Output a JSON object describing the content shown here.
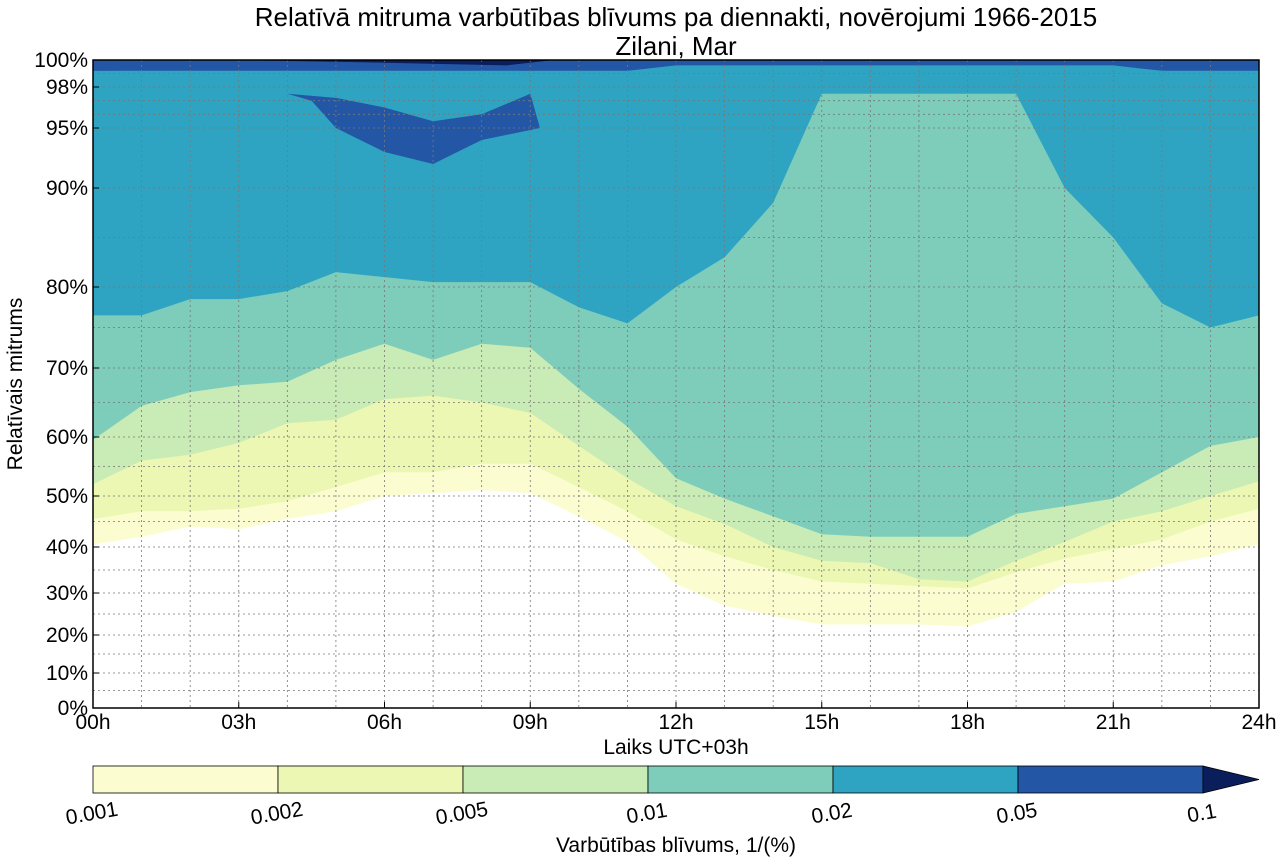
{
  "chart_data": {
    "type": "contour",
    "title": "Relatīvā mitruma varbūtības blīvums pa diennakti, novērojumi 1966-2015",
    "subtitle": "Zilani, Mar",
    "xlabel": "Laiks UTC+03h",
    "ylabel": "Relatīvais mitrums",
    "x_unit": "hour",
    "xlim": [
      0,
      24
    ],
    "ylim": [
      0,
      100
    ],
    "y_scale": "nonlinear (expanded near 100%)",
    "x_ticks": [
      {
        "value": 0,
        "label": "00h"
      },
      {
        "value": 3,
        "label": "03h"
      },
      {
        "value": 6,
        "label": "06h"
      },
      {
        "value": 9,
        "label": "09h"
      },
      {
        "value": 12,
        "label": "12h"
      },
      {
        "value": 15,
        "label": "15h"
      },
      {
        "value": 18,
        "label": "18h"
      },
      {
        "value": 21,
        "label": "21h"
      },
      {
        "value": 24,
        "label": "24h"
      }
    ],
    "y_ticks": [
      {
        "value": 0,
        "label": "0%"
      },
      {
        "value": 10,
        "label": "10%"
      },
      {
        "value": 20,
        "label": "20%"
      },
      {
        "value": 30,
        "label": "30%"
      },
      {
        "value": 40,
        "label": "40%"
      },
      {
        "value": 50,
        "label": "50%"
      },
      {
        "value": 60,
        "label": "60%"
      },
      {
        "value": 70,
        "label": "70%"
      },
      {
        "value": 80,
        "label": "80%"
      },
      {
        "value": 90,
        "label": "90%"
      },
      {
        "value": 95,
        "label": "95%"
      },
      {
        "value": 98,
        "label": "98%"
      },
      {
        "value": 100,
        "label": "100%"
      }
    ],
    "grid": true,
    "hours": [
      0,
      1,
      2,
      3,
      4,
      5,
      6,
      7,
      8,
      9,
      10,
      11,
      12,
      13,
      14,
      15,
      16,
      17,
      18,
      19,
      20,
      21,
      22,
      23,
      24
    ],
    "level_boundaries": {
      "0.001_lower": [
        40.5,
        42,
        44,
        43.5,
        45.5,
        47,
        50,
        50.5,
        51,
        50.5,
        46,
        41,
        32,
        27,
        24.5,
        22.5,
        22.5,
        22.5,
        22,
        25.5,
        32,
        32.5,
        36,
        38,
        40.5
      ],
      "0.002_lower": [
        45.5,
        47,
        47,
        47.5,
        49,
        51.5,
        54,
        54,
        55.5,
        55.5,
        51.5,
        47,
        41.5,
        38,
        35,
        32.5,
        32,
        31.5,
        31,
        34.5,
        37.5,
        39.5,
        41.5,
        45,
        47.5
      ],
      "0.005_lower": [
        52,
        56,
        57,
        59,
        62,
        62.5,
        65.5,
        66,
        65,
        63.5,
        58.5,
        53,
        48,
        44.5,
        40,
        37,
        36.5,
        33,
        32.5,
        37,
        41,
        45,
        47,
        50,
        52.5
      ],
      "0.01_lower": [
        59.5,
        64.5,
        66.5,
        67.5,
        68,
        71,
        73,
        71,
        73,
        72.5,
        67,
        61.5,
        53,
        49.5,
        46,
        42.5,
        42,
        42,
        42,
        46.5,
        48,
        49.5,
        54,
        58.5,
        60
      ],
      "0.02_lower": [
        76.5,
        76.5,
        78.5,
        78.5,
        79.5,
        81.5,
        81,
        80.5,
        80.5,
        80.5,
        77.5,
        75.5,
        80,
        83,
        88.5,
        97.5,
        97.5,
        97.5,
        97.5,
        97.5,
        90,
        85,
        78,
        75,
        76.5
      ],
      "0.05_lower_edge": [
        99.2,
        99.2,
        99.2,
        99.2,
        99.2,
        99.2,
        99.2,
        99.2,
        99.2,
        99.2,
        99.2,
        99.2,
        99.6,
        99.6,
        99.6,
        99.6,
        99.6,
        99.6,
        99.6,
        99.6,
        99.6,
        99.6,
        99.2,
        99.2,
        99.2
      ]
    },
    "colorbar": {
      "label": "Varbūtības blīvums, 1/(%)",
      "ticks": [
        "0.001",
        "0.002",
        "0.005",
        "0.01",
        "0.02",
        "0.05",
        "0.1"
      ],
      "extend": "max",
      "colors": [
        "#fbfdd0",
        "#ecf7b3",
        "#c9ebb6",
        "#7ecdbb",
        "#2fa4c2",
        "#2357a6",
        "#0a1e5c"
      ],
      "below_min_color": "#ffffff"
    }
  }
}
